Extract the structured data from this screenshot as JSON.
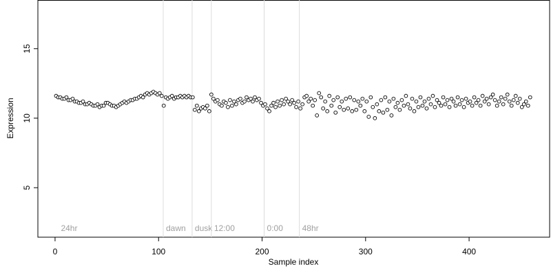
{
  "chart_data": {
    "type": "scatter",
    "x_label": "Sample index",
    "y_label": "Expression",
    "xlim": [
      -16.6,
      477.8
    ],
    "ylim": [
      1.44,
      18.5
    ],
    "xticks": [
      0,
      100,
      200,
      300,
      400
    ],
    "yticks": [
      5,
      10,
      15
    ],
    "color": "#000000",
    "fill": "#ffffff",
    "annotations": [
      {
        "x": 3,
        "label": "24hr",
        "line": false
      },
      {
        "x": 104.5,
        "label": "dawn",
        "line": true
      },
      {
        "x": 132.4,
        "label": "dusk",
        "line": true
      },
      {
        "x": 151,
        "label": "12:00",
        "line": true
      },
      {
        "x": 202,
        "label": "0:00",
        "line": true
      },
      {
        "x": 236,
        "label": "48hr",
        "line": true
      }
    ],
    "annotation_y": 2.03,
    "x": [
      1,
      3,
      5,
      7,
      9,
      11,
      13,
      15,
      17,
      19,
      21,
      23,
      25,
      27,
      29,
      31,
      33,
      35,
      37,
      39,
      41,
      43,
      45,
      47,
      49,
      51,
      53,
      55,
      57,
      59,
      61,
      63,
      65,
      67,
      69,
      71,
      73,
      75,
      77,
      79,
      81,
      83,
      85,
      87,
      89,
      91,
      93,
      95,
      97,
      99,
      101,
      103,
      105,
      107,
      109,
      111,
      113,
      115,
      117,
      119,
      121,
      123,
      125,
      127,
      129,
      131,
      133,
      135,
      137,
      139,
      141,
      143,
      145,
      147,
      149,
      151,
      153,
      155,
      157,
      159,
      161,
      163,
      165,
      167,
      169,
      171,
      173,
      175,
      177,
      179,
      181,
      183,
      185,
      187,
      189,
      191,
      193,
      195,
      197,
      199,
      201,
      203,
      205,
      207,
      209,
      211,
      213,
      215,
      217,
      219,
      221,
      223,
      225,
      227,
      229,
      231,
      233,
      235,
      237,
      239,
      241,
      243,
      245,
      247,
      249,
      251,
      253,
      255,
      257,
      259,
      261,
      263,
      265,
      267,
      269,
      271,
      273,
      275,
      277,
      279,
      281,
      283,
      285,
      287,
      289,
      291,
      293,
      295,
      297,
      299,
      301,
      303,
      305,
      307,
      309,
      311,
      313,
      315,
      317,
      319,
      321,
      323,
      325,
      327,
      329,
      331,
      333,
      335,
      337,
      339,
      341,
      343,
      345,
      347,
      349,
      351,
      353,
      355,
      357,
      359,
      361,
      363,
      365,
      367,
      369,
      371,
      373,
      375,
      377,
      379,
      381,
      383,
      385,
      387,
      389,
      391,
      393,
      395,
      397,
      399,
      401,
      403,
      405,
      407,
      409,
      411,
      413,
      415,
      417,
      419,
      421,
      423,
      425,
      427,
      429,
      431,
      433,
      435,
      437,
      439,
      441,
      443,
      445,
      447,
      449,
      451,
      453,
      455,
      457,
      459
    ],
    "values": [
      11.6,
      11.5,
      11.5,
      11.4,
      11.4,
      11.5,
      11.3,
      11.3,
      11.4,
      11.2,
      11.2,
      11.1,
      11.1,
      11.2,
      11.0,
      11.0,
      11.1,
      11.0,
      10.9,
      10.9,
      11.0,
      10.8,
      10.9,
      10.9,
      11.1,
      11.1,
      11.0,
      10.9,
      10.9,
      10.8,
      10.9,
      11.0,
      11.1,
      11.2,
      11.1,
      11.2,
      11.3,
      11.3,
      11.4,
      11.4,
      11.5,
      11.6,
      11.5,
      11.7,
      11.8,
      11.7,
      11.8,
      11.9,
      11.8,
      11.7,
      11.8,
      11.6,
      10.9,
      11.5,
      11.4,
      11.5,
      11.6,
      11.4,
      11.5,
      11.5,
      11.6,
      11.5,
      11.6,
      11.5,
      11.6,
      11.5,
      11.5,
      10.6,
      10.9,
      10.5,
      10.7,
      10.8,
      10.7,
      10.9,
      10.5,
      11.7,
      11.4,
      11.2,
      11.3,
      11.0,
      10.9,
      11.2,
      11.1,
      10.8,
      11.3,
      10.9,
      11.2,
      11.0,
      11.3,
      11.4,
      11.1,
      11.2,
      11.5,
      11.3,
      11.4,
      11.2,
      11.5,
      11.3,
      11.4,
      11.1,
      10.9,
      11.0,
      10.7,
      10.5,
      10.9,
      11.1,
      10.8,
      11.2,
      10.9,
      11.3,
      11.0,
      11.4,
      11.2,
      11.0,
      11.3,
      11.1,
      10.8,
      11.2,
      10.7,
      11.0,
      11.5,
      11.6,
      11.2,
      11.4,
      10.9,
      11.3,
      10.2,
      11.8,
      11.5,
      10.7,
      11.2,
      10.5,
      11.6,
      10.9,
      11.3,
      10.4,
      11.5,
      10.8,
      11.2,
      10.6,
      11.4,
      10.7,
      11.5,
      10.5,
      11.3,
      10.6,
      11.2,
      10.9,
      11.4,
      10.5,
      11.2,
      10.1,
      11.5,
      10.8,
      10.0,
      11.0,
      10.5,
      11.3,
      10.4,
      11.5,
      10.6,
      11.2,
      10.2,
      11.4,
      10.8,
      11.1,
      10.6,
      11.3,
      10.9,
      11.6,
      11.0,
      10.7,
      11.4,
      10.5,
      11.2,
      10.8,
      11.5,
      10.9,
      11.2,
      10.7,
      11.4,
      11.0,
      11.6,
      10.8,
      11.3,
      11.1,
      10.9,
      11.5,
      11.0,
      11.3,
      10.8,
      11.4,
      11.2,
      10.9,
      11.5,
      11.0,
      11.3,
      10.8,
      11.4,
      11.1,
      11.2,
      10.9,
      11.5,
      11.1,
      11.3,
      10.9,
      11.6,
      11.2,
      11.4,
      11.0,
      11.5,
      11.7,
      11.3,
      10.9,
      11.2,
      11.5,
      11.0,
      11.4,
      11.7,
      11.2,
      10.9,
      11.3,
      11.6,
      11.1,
      11.4,
      10.8,
      11.0,
      11.2,
      10.9,
      11.5
    ]
  }
}
